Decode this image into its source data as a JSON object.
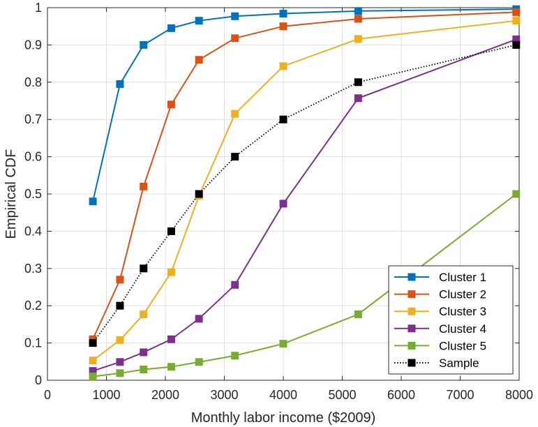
{
  "chart_data": {
    "type": "line",
    "title": "",
    "xlabel": "Monthly labor income ($2009)",
    "ylabel": "Empirical CDF",
    "xlim": [
      0,
      8000
    ],
    "ylim": [
      0,
      1
    ],
    "xticks": [
      0,
      1000,
      2000,
      3000,
      4000,
      5000,
      6000,
      7000,
      8000
    ],
    "yticks": [
      0,
      0.1,
      0.2,
      0.3,
      0.4,
      0.5,
      0.6,
      0.7,
      0.8,
      0.9,
      1
    ],
    "xtick_labels": [
      "0",
      "1000",
      "2000",
      "3000",
      "4000",
      "5000",
      "6000",
      "7000",
      "8000"
    ],
    "ytick_labels": [
      "0",
      "0.1",
      "0.2",
      "0.3",
      "0.4",
      "0.5",
      "0.6",
      "0.7",
      "0.8",
      "0.9",
      "1"
    ],
    "grid": true,
    "legend_position": "bottom-right",
    "x": [
      770,
      1230,
      1630,
      2100,
      2570,
      3180,
      4000,
      5270,
      7950
    ],
    "series": [
      {
        "name": "Cluster 1",
        "color": "#0072BD",
        "line": "solid",
        "values": [
          0.48,
          0.795,
          0.9,
          0.945,
          0.965,
          0.977,
          0.984,
          0.991,
          0.996
        ]
      },
      {
        "name": "Cluster 2",
        "color": "#D95319",
        "line": "solid",
        "values": [
          0.11,
          0.27,
          0.52,
          0.74,
          0.86,
          0.918,
          0.95,
          0.97,
          0.988
        ]
      },
      {
        "name": "Cluster 3",
        "color": "#EDB120",
        "line": "solid",
        "values": [
          0.053,
          0.108,
          0.177,
          0.29,
          0.495,
          0.715,
          0.843,
          0.916,
          0.965
        ]
      },
      {
        "name": "Cluster 4",
        "color": "#7E2F8E",
        "line": "solid",
        "values": [
          0.025,
          0.049,
          0.075,
          0.11,
          0.165,
          0.256,
          0.474,
          0.757,
          0.915
        ]
      },
      {
        "name": "Cluster 5",
        "color": "#77AC30",
        "line": "solid",
        "values": [
          0.01,
          0.019,
          0.029,
          0.036,
          0.049,
          0.066,
          0.098,
          0.177,
          0.5
        ]
      },
      {
        "name": "Sample",
        "color": "#000000",
        "line": "dotted",
        "values": [
          0.1,
          0.2,
          0.3,
          0.4,
          0.5,
          0.6,
          0.7,
          0.8,
          0.9
        ]
      }
    ]
  }
}
